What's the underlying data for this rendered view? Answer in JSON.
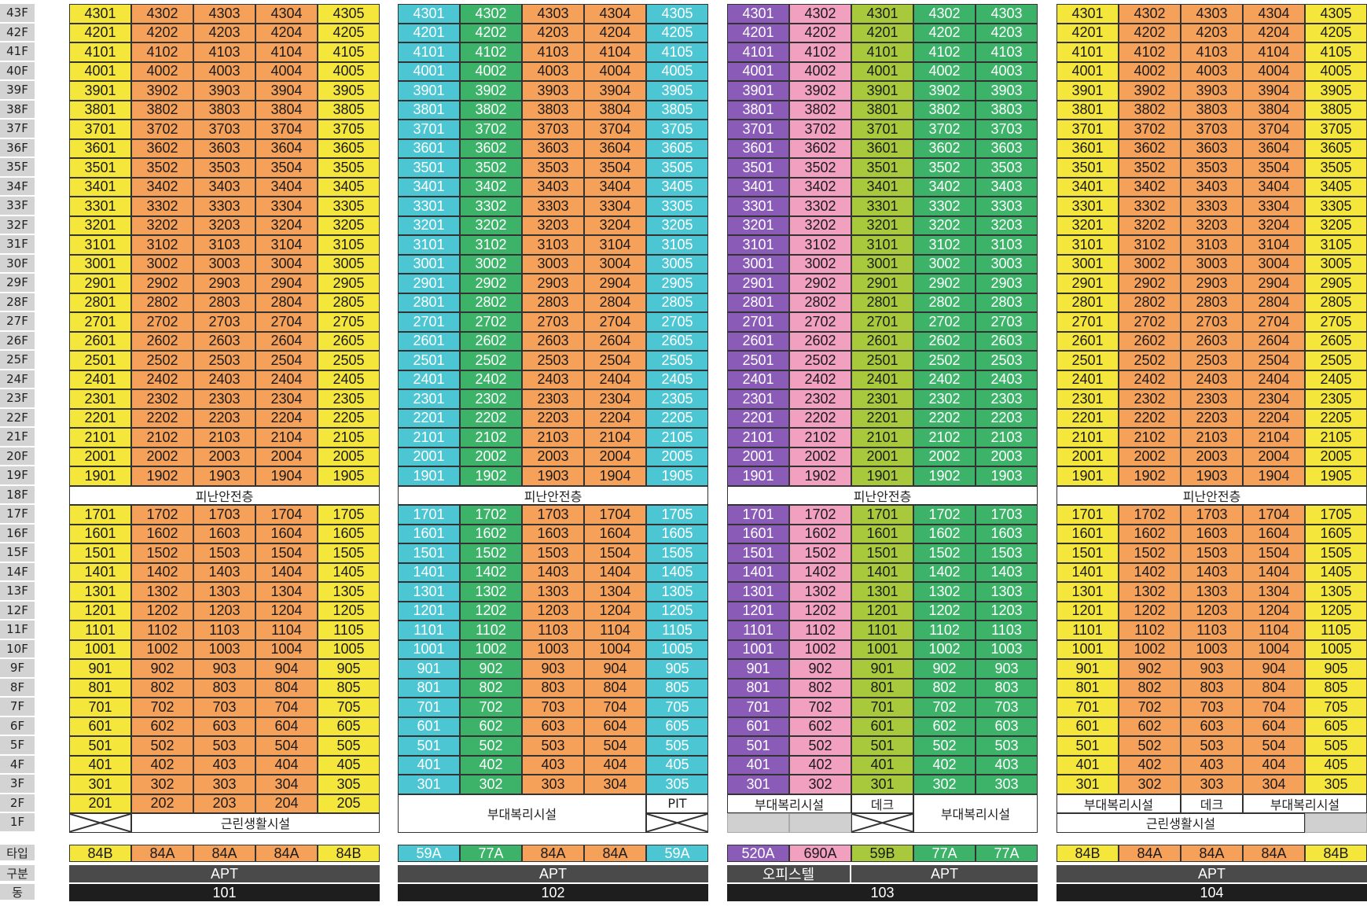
{
  "floors": [
    "43F",
    "42F",
    "41F",
    "40F",
    "39F",
    "38F",
    "37F",
    "36F",
    "35F",
    "34F",
    "33F",
    "32F",
    "31F",
    "30F",
    "29F",
    "28F",
    "27F",
    "26F",
    "25F",
    "24F",
    "23F",
    "22F",
    "21F",
    "20F",
    "19F",
    "18F",
    "17F",
    "16F",
    "15F",
    "14F",
    "13F",
    "12F",
    "11F",
    "10F",
    "9F",
    "8F",
    "7F",
    "6F",
    "5F",
    "4F",
    "3F",
    "2F",
    "1F"
  ],
  "row_labels": {
    "type": "타입",
    "gubun": "구분",
    "dong": "동"
  },
  "colors": {
    "84B": "#f5e63c",
    "84A": "#f5a15a",
    "59A": "#4cc6d2",
    "77A": "#3db36a",
    "520A": "#8a5cb8",
    "690A": "#f2a0c0",
    "59B": "#a8c93c",
    "gubun_bar": "#4a4a4a",
    "dong_bar": "#1e1e1e",
    "floor_label_bg": "#d3d3d3"
  },
  "buildings": [
    {
      "dong": "101",
      "columns": [
        {
          "type": "84B",
          "suffix": "01"
        },
        {
          "type": "84A",
          "suffix": "02"
        },
        {
          "type": "84A",
          "suffix": "03"
        },
        {
          "type": "84A",
          "suffix": "04"
        },
        {
          "type": "84B",
          "suffix": "05"
        }
      ],
      "top_floor": 43,
      "lowest_unit_floor": 2,
      "refuge_floor": 18,
      "refuge_label": "피난안전층",
      "gubun": [
        {
          "label": "APT",
          "span": 5
        }
      ],
      "ground": [
        {
          "row": "1F",
          "span": 1,
          "kind": "x"
        },
        {
          "row": "1F",
          "span": 4,
          "kind": "text",
          "label": "근린생활시설"
        }
      ],
      "facility_blocks": []
    },
    {
      "dong": "102",
      "columns": [
        {
          "type": "59A",
          "suffix": "01"
        },
        {
          "type": "77A",
          "suffix": "02"
        },
        {
          "type": "84A",
          "suffix": "03"
        },
        {
          "type": "84A",
          "suffix": "04"
        },
        {
          "type": "59A",
          "suffix": "05"
        }
      ],
      "top_floor": 43,
      "lowest_unit_floor": 3,
      "refuge_floor": 18,
      "refuge_label": "피난안전층",
      "gubun": [
        {
          "label": "APT",
          "span": 5
        }
      ],
      "ground": [],
      "facility_blocks": [
        {
          "label": "부대복리시설",
          "col": 0,
          "span": 4,
          "from": "2F",
          "to": "1F",
          "kind": "text"
        },
        {
          "label": "PIT",
          "col": 4,
          "span": 1,
          "from": "2F",
          "to": "2F",
          "kind": "text"
        },
        {
          "label": "",
          "col": 4,
          "span": 1,
          "from": "1F",
          "to": "1F",
          "kind": "x"
        }
      ]
    },
    {
      "dong": "103",
      "columns": [
        {
          "type": "520A",
          "suffix": "01"
        },
        {
          "type": "690A",
          "suffix": "02"
        },
        {
          "type": "59B",
          "suffix": "01"
        },
        {
          "type": "77A",
          "suffix": "02"
        },
        {
          "type": "77A",
          "suffix": "03"
        }
      ],
      "top_floor": 43,
      "lowest_unit_floor": 3,
      "refuge_floor": 18,
      "refuge_label": "피난안전층",
      "gubun": [
        {
          "label": "오피스텔",
          "span": 2
        },
        {
          "label": "APT",
          "span": 3
        }
      ],
      "ground": [],
      "facility_blocks": [
        {
          "label": "부대복리시설",
          "col": 0,
          "span": 2,
          "from": "2F",
          "to": "2F",
          "kind": "text"
        },
        {
          "label": "",
          "col": 0,
          "span": 1,
          "from": "1F",
          "to": "1F",
          "kind": "gray"
        },
        {
          "label": "",
          "col": 1,
          "span": 1,
          "from": "1F",
          "to": "1F",
          "kind": "gray"
        },
        {
          "label": "데크",
          "col": 2,
          "span": 1,
          "from": "2F",
          "to": "2F",
          "kind": "text"
        },
        {
          "label": "",
          "col": 2,
          "span": 1,
          "from": "1F",
          "to": "1F",
          "kind": "x"
        },
        {
          "label": "부대복리시설",
          "col": 3,
          "span": 2,
          "from": "2F",
          "to": "1F",
          "kind": "text"
        }
      ]
    },
    {
      "dong": "104",
      "columns": [
        {
          "type": "84B",
          "suffix": "01"
        },
        {
          "type": "84A",
          "suffix": "02"
        },
        {
          "type": "84A",
          "suffix": "03"
        },
        {
          "type": "84A",
          "suffix": "04"
        },
        {
          "type": "84B",
          "suffix": "05"
        }
      ],
      "top_floor": 43,
      "lowest_unit_floor": 3,
      "refuge_floor": 18,
      "refuge_label": "피난안전층",
      "gubun": [
        {
          "label": "APT",
          "span": 5
        }
      ],
      "ground": [],
      "facility_blocks": [
        {
          "label": "부대복리시설",
          "col": 0,
          "span": 2,
          "from": "2F",
          "to": "2F",
          "kind": "text"
        },
        {
          "label": "데크",
          "col": 2,
          "span": 1,
          "from": "2F",
          "to": "2F",
          "kind": "text"
        },
        {
          "label": "부대복리시설",
          "col": 3,
          "span": 2,
          "from": "2F",
          "to": "2F",
          "kind": "text"
        },
        {
          "label": "근린생활시설",
          "col": 0,
          "span": 4,
          "from": "1F",
          "to": "1F",
          "kind": "text"
        },
        {
          "label": "",
          "col": 4,
          "span": 1,
          "from": "1F",
          "to": "1F",
          "kind": "gray"
        }
      ]
    }
  ]
}
